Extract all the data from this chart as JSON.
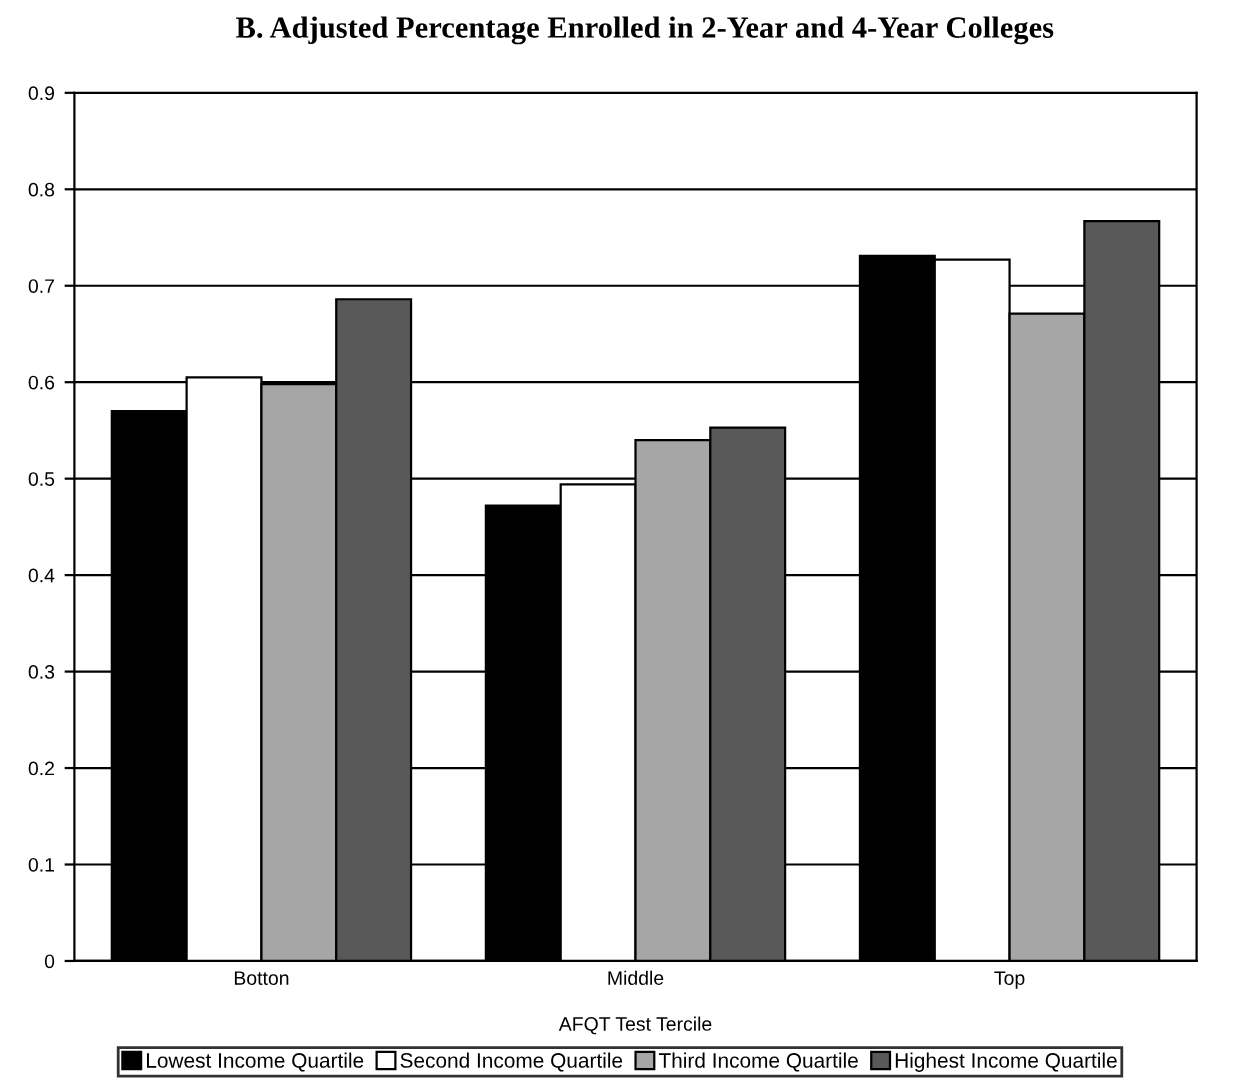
{
  "chart_data": {
    "type": "bar",
    "title": "B. Adjusted Percentage Enrolled in 2-Year and 4-Year Colleges",
    "xlabel": "AFQT Test Tercile",
    "categories": [
      "Botton",
      "Middle",
      "Top"
    ],
    "series": [
      {
        "name": "Lowest Income Quartile",
        "color": "#000000",
        "values": [
          0.57,
          0.472,
          0.731
        ]
      },
      {
        "name": "Second Income Quartile",
        "color": "#ffffff",
        "values": [
          0.605,
          0.494,
          0.727
        ]
      },
      {
        "name": "Third Income Quartile",
        "color": "#a6a6a6",
        "values": [
          0.598,
          0.54,
          0.671
        ]
      },
      {
        "name": "Highest Income Quartile",
        "color": "#595959",
        "values": [
          0.686,
          0.553,
          0.767
        ]
      }
    ],
    "ylim": [
      0,
      0.9
    ],
    "yticks": [
      0,
      0.1,
      0.2,
      0.3,
      0.4,
      0.5,
      0.6,
      0.7,
      0.8,
      0.9
    ],
    "grid": "y",
    "legend": "bottom"
  }
}
